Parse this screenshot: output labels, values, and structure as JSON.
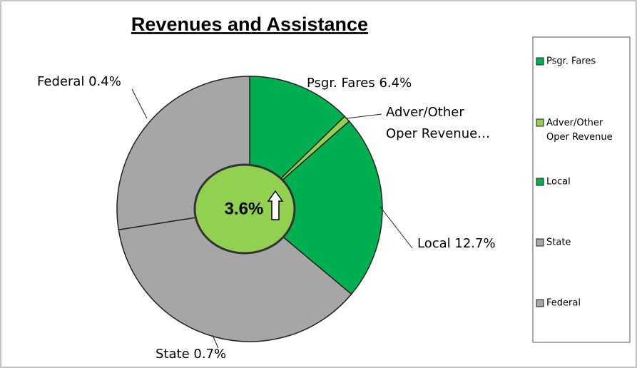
{
  "chart_data": {
    "type": "pie",
    "title": "Revenues and Assistance",
    "categories": [
      "Psgr. Fares",
      "Adver/Other Oper Revenue",
      "Local",
      "State",
      "Federal"
    ],
    "values": [
      12.7,
      0.8,
      22.6,
      36.4,
      27.5
    ],
    "data_labels": [
      "Psgr. Fares 6.4%",
      "Adver/Other Oper Revenue…",
      "Local 12.7%",
      "State  0.7%",
      "Federal 0.4%"
    ],
    "colors": [
      "#00b050",
      "#92d050",
      "#00b050",
      "#a6a6a6",
      "#a6a6a6"
    ],
    "center_label": "3.6%",
    "legend": "right"
  }
}
